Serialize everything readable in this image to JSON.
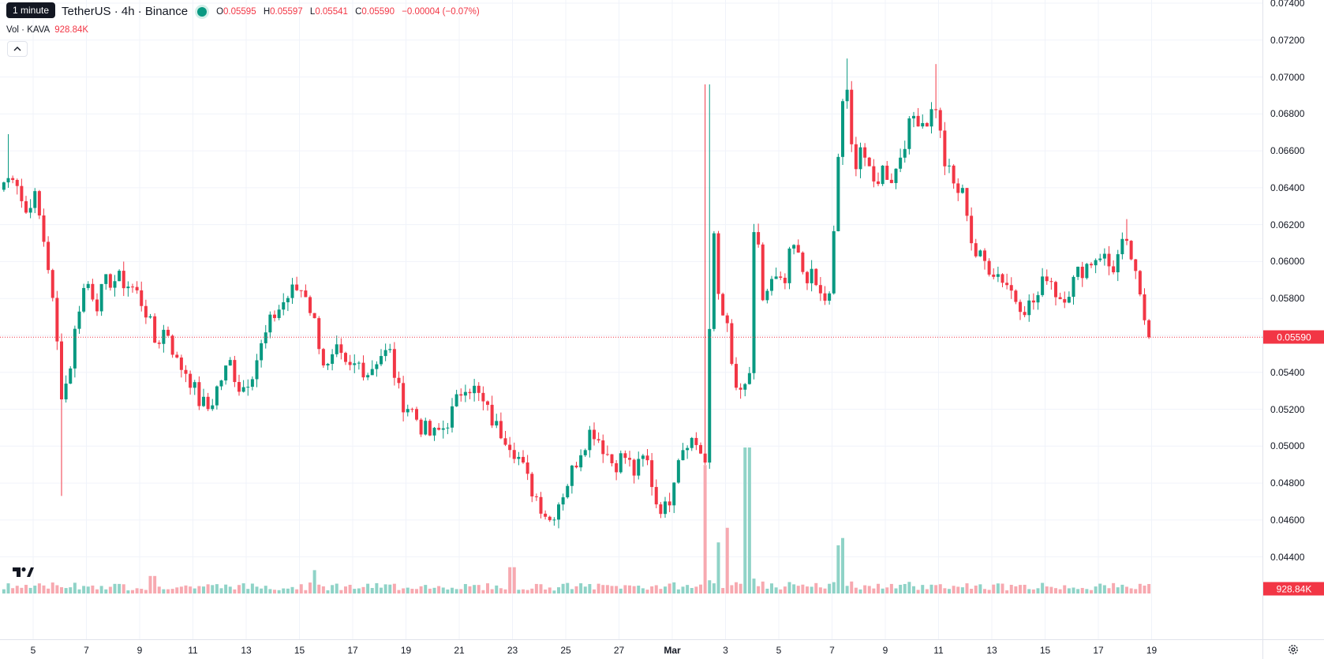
{
  "tooltip": "1 minute",
  "legend": {
    "symbol": "TetherUS · 4h · Binance",
    "o_label": "O",
    "o_value": "0.05595",
    "h_label": "H",
    "h_value": "0.05597",
    "l_label": "L",
    "l_value": "0.05541",
    "c_label": "C",
    "c_value": "0.05590",
    "change": "−0.00004 (−0.07%)",
    "vol_label": "Vol · KAVA",
    "vol_value": "928.84K"
  },
  "colors": {
    "up": "#089981",
    "down": "#f23645",
    "up_vol": "#8fd3c7",
    "down_vol": "#f7a9b0",
    "grid": "#f0f3fa"
  },
  "icons": {
    "collapse": "chevron-up-icon",
    "logo": "tradingview-logo-icon",
    "settings": "gear-icon"
  },
  "chart_data": {
    "type": "candlestick",
    "interval": "4h",
    "y_min": 0.043,
    "y_max": 0.074,
    "price_ticks": [
      "0.07400",
      "0.07200",
      "0.07000",
      "0.06800",
      "0.06600",
      "0.06400",
      "0.06200",
      "0.06000",
      "0.05800",
      "0.05600",
      "0.05400",
      "0.05200",
      "0.05000",
      "0.04800",
      "0.04600",
      "0.04400"
    ],
    "last_price": 0.0559,
    "last_price_label": "0.05590",
    "volume_label": "928.84K",
    "x_start_day": 3.9,
    "x_end_day": 39.6,
    "time_ticks": [
      {
        "label": "5",
        "day": 5
      },
      {
        "label": "7",
        "day": 7
      },
      {
        "label": "9",
        "day": 9
      },
      {
        "label": "11",
        "day": 11
      },
      {
        "label": "13",
        "day": 13
      },
      {
        "label": "15",
        "day": 15
      },
      {
        "label": "17",
        "day": 17
      },
      {
        "label": "19",
        "day": 19
      },
      {
        "label": "21",
        "day": 21
      },
      {
        "label": "23",
        "day": 23
      },
      {
        "label": "25",
        "day": 25
      },
      {
        "label": "27",
        "day": 27
      },
      {
        "label": "Mar",
        "day": 29,
        "bold": true
      },
      {
        "label": "3",
        "day": 31
      },
      {
        "label": "5",
        "day": 33
      },
      {
        "label": "7",
        "day": 35
      },
      {
        "label": "9",
        "day": 37
      },
      {
        "label": "11",
        "day": 39
      },
      {
        "label": "13",
        "day": 41
      },
      {
        "label": "15",
        "day": 43
      },
      {
        "label": "17",
        "day": 45
      },
      {
        "label": "19",
        "day": 47
      }
    ],
    "close_path": [
      [
        4.0,
        0.0643
      ],
      [
        4.3,
        0.065
      ],
      [
        4.7,
        0.0625
      ],
      [
        5.0,
        0.0638
      ],
      [
        5.3,
        0.062
      ],
      [
        5.6,
        0.0595
      ],
      [
        5.9,
        0.0555
      ],
      [
        6.1,
        0.0525
      ],
      [
        6.4,
        0.0545
      ],
      [
        6.7,
        0.0575
      ],
      [
        7.0,
        0.059
      ],
      [
        7.4,
        0.0578
      ],
      [
        7.8,
        0.059
      ],
      [
        8.3,
        0.059
      ],
      [
        8.8,
        0.0585
      ],
      [
        9.2,
        0.0575
      ],
      [
        9.6,
        0.0555
      ],
      [
        10.0,
        0.0565
      ],
      [
        10.4,
        0.0545
      ],
      [
        10.8,
        0.054
      ],
      [
        11.2,
        0.0525
      ],
      [
        11.6,
        0.052
      ],
      [
        12.0,
        0.0535
      ],
      [
        12.4,
        0.0545
      ],
      [
        12.8,
        0.053
      ],
      [
        13.2,
        0.054
      ],
      [
        13.6,
        0.0555
      ],
      [
        14.0,
        0.057
      ],
      [
        14.4,
        0.0578
      ],
      [
        14.8,
        0.0585
      ],
      [
        15.2,
        0.0585
      ],
      [
        15.6,
        0.0565
      ],
      [
        16.0,
        0.054
      ],
      [
        16.4,
        0.055
      ],
      [
        16.8,
        0.054
      ],
      [
        17.2,
        0.0545
      ],
      [
        17.6,
        0.054
      ],
      [
        18.0,
        0.055
      ],
      [
        18.4,
        0.055
      ],
      [
        18.8,
        0.0525
      ],
      [
        19.2,
        0.052
      ],
      [
        19.6,
        0.051
      ],
      [
        20.0,
        0.0505
      ],
      [
        20.4,
        0.051
      ],
      [
        20.8,
        0.052
      ],
      [
        21.2,
        0.0535
      ],
      [
        21.6,
        0.053
      ],
      [
        22.0,
        0.052
      ],
      [
        22.4,
        0.051
      ],
      [
        22.8,
        0.0505
      ],
      [
        23.2,
        0.0495
      ],
      [
        23.6,
        0.048
      ],
      [
        24.0,
        0.047
      ],
      [
        24.4,
        0.046
      ],
      [
        24.8,
        0.0472
      ],
      [
        25.2,
        0.0485
      ],
      [
        25.6,
        0.05
      ],
      [
        26.0,
        0.051
      ],
      [
        26.4,
        0.05
      ],
      [
        26.8,
        0.049
      ],
      [
        27.2,
        0.0495
      ],
      [
        27.6,
        0.0485
      ],
      [
        28.0,
        0.0495
      ],
      [
        28.4,
        0.047
      ],
      [
        28.8,
        0.0465
      ],
      [
        29.2,
        0.0495
      ],
      [
        29.6,
        0.0505
      ],
      [
        30.0,
        0.05
      ],
      [
        30.3,
        0.0488
      ],
      [
        30.5,
        0.063
      ],
      [
        30.7,
        0.0585
      ],
      [
        31.0,
        0.057
      ],
      [
        31.3,
        0.0535
      ],
      [
        31.6,
        0.0525
      ],
      [
        31.9,
        0.054
      ],
      [
        32.1,
        0.0625
      ],
      [
        32.4,
        0.058
      ],
      [
        32.8,
        0.059
      ],
      [
        33.2,
        0.0585
      ],
      [
        33.5,
        0.061
      ],
      [
        33.9,
        0.0595
      ],
      [
        34.3,
        0.059
      ],
      [
        34.6,
        0.058
      ],
      [
        34.9,
        0.058
      ],
      [
        35.1,
        0.062
      ],
      [
        35.3,
        0.0675
      ],
      [
        35.5,
        0.07
      ],
      [
        35.8,
        0.065
      ],
      [
        36.1,
        0.0665
      ],
      [
        36.5,
        0.064
      ],
      [
        36.9,
        0.065
      ],
      [
        37.3,
        0.0645
      ],
      [
        37.7,
        0.0665
      ],
      [
        38.1,
        0.068
      ],
      [
        38.5,
        0.0675
      ],
      [
        38.9,
        0.0685
      ],
      [
        39.2,
        0.0655
      ],
      [
        39.6,
        0.064
      ],
      [
        40.0,
        0.0635
      ],
      [
        40.3,
        0.0605
      ],
      [
        40.7,
        0.06
      ],
      [
        41.1,
        0.0595
      ],
      [
        41.5,
        0.059
      ],
      [
        41.9,
        0.058
      ],
      [
        42.3,
        0.0575
      ],
      [
        42.7,
        0.058
      ],
      [
        43.1,
        0.0595
      ],
      [
        43.5,
        0.058
      ],
      [
        43.9,
        0.0585
      ],
      [
        44.3,
        0.0595
      ],
      [
        44.7,
        0.06
      ],
      [
        45.1,
        0.0605
      ],
      [
        45.5,
        0.0595
      ],
      [
        45.9,
        0.0608
      ],
      [
        46.2,
        0.0605
      ],
      [
        46.4,
        0.059
      ],
      [
        46.7,
        0.057
      ],
      [
        46.9,
        0.0565
      ],
      [
        47.0,
        0.0559
      ]
    ],
    "wick_spikes": [
      {
        "day": 6.05,
        "low": 0.0473
      },
      {
        "day": 30.3,
        "high": 0.0696
      },
      {
        "day": 35.6,
        "high": 0.071
      },
      {
        "day": 38.9,
        "high": 0.0707
      },
      {
        "day": 46.1,
        "high": 0.0623
      },
      {
        "day": 4.1,
        "high": 0.0669
      }
    ],
    "volume_spikes": [
      {
        "day": 30.2,
        "size": 0.88,
        "dir": "down"
      },
      {
        "day": 31.8,
        "size": 1.0,
        "dir": "up"
      },
      {
        "day": 30.7,
        "size": 0.35,
        "dir": "up"
      },
      {
        "day": 31.1,
        "size": 0.45,
        "dir": "down"
      },
      {
        "day": 35.2,
        "size": 0.33,
        "dir": "up"
      },
      {
        "day": 35.4,
        "size": 0.38,
        "dir": "up"
      },
      {
        "day": 23.0,
        "size": 0.18,
        "dir": "down"
      },
      {
        "day": 15.6,
        "size": 0.16,
        "dir": "up"
      },
      {
        "day": 9.5,
        "size": 0.12,
        "dir": "down"
      }
    ]
  }
}
